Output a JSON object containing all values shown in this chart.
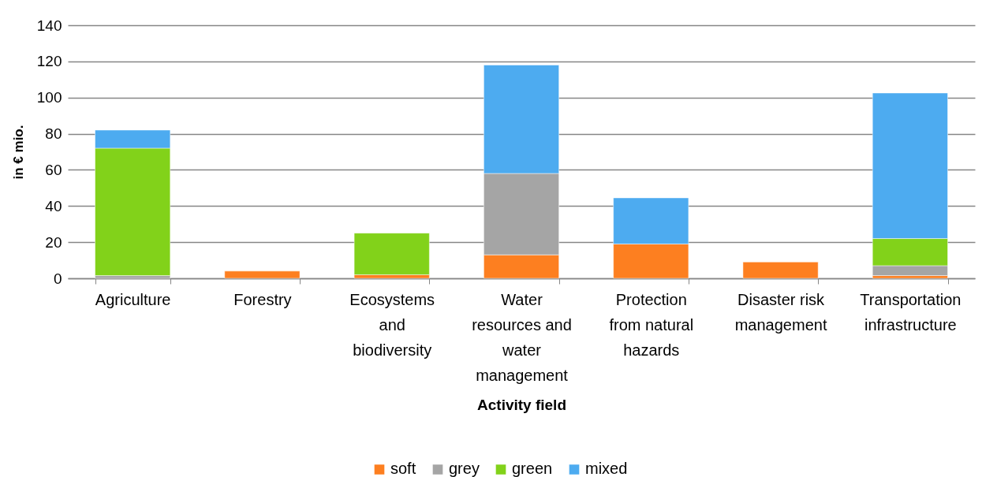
{
  "chart_data": {
    "type": "bar",
    "stacked": true,
    "xlabel": "Activity field",
    "ylabel": "in € mio.",
    "categories": [
      "Agriculture",
      "Forestry",
      "Ecosystems and biodiversity",
      "Water resources and water management",
      "Protection from natural hazards",
      "Disaster risk management",
      "Transportation infrastructure"
    ],
    "series": [
      {
        "name": "soft",
        "color": "#fd7f20",
        "values": [
          null,
          4,
          2,
          13,
          19,
          9,
          1.5
        ]
      },
      {
        "name": "grey",
        "color": "#a5a5a5",
        "values": [
          1.5,
          null,
          null,
          45,
          null,
          null,
          5.5
        ]
      },
      {
        "name": "green",
        "color": "#82d21a",
        "values": [
          70.5,
          null,
          23,
          null,
          null,
          null,
          15
        ]
      },
      {
        "name": "mixed",
        "color": "#4dabf0",
        "values": [
          10,
          null,
          null,
          60,
          25.5,
          null,
          80.5
        ]
      }
    ],
    "ylim": [
      0,
      140
    ],
    "yticks": [
      0,
      20,
      40,
      60,
      80,
      100,
      120,
      140
    ],
    "grid": "y",
    "legend": "bottom"
  }
}
